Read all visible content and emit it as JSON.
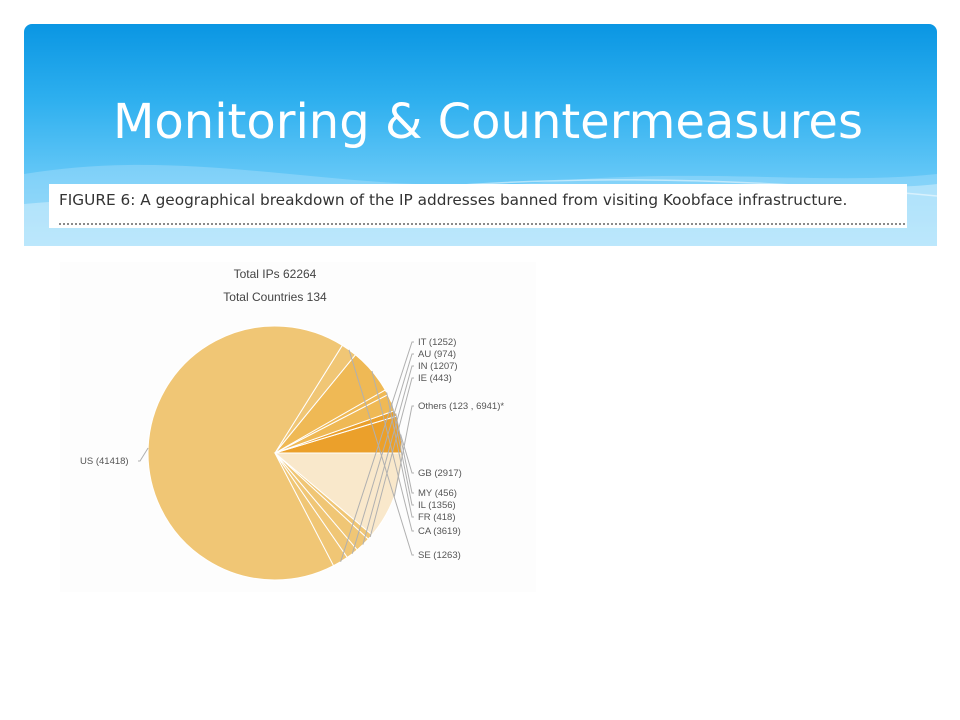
{
  "slide": {
    "title": "Monitoring & Countermeasures",
    "caption": "FIGURE 6: A geographical breakdown of the IP addresses banned from visiting Koobface infrastructure."
  },
  "colors": {
    "header_top": "#0a96e3",
    "header_bottom": "#8fd8fa",
    "slice_light": "#f0c675",
    "slice_pale": "#f9e8cb",
    "slice_dark": "#eba02b",
    "slice_mid": "#efb955"
  },
  "chart_data": {
    "type": "pie",
    "title": "Total IPs 62264",
    "subtitle": "Total Countries 134",
    "start_angle_deg": 0,
    "direction": "counterclockwise-from-3-oclock",
    "slices": [
      {
        "label": "GB (2917)",
        "name": "GB",
        "value": 2917
      },
      {
        "label": "MY (456)",
        "name": "MY",
        "value": 456
      },
      {
        "label": "IL (1356)",
        "name": "IL",
        "value": 1356
      },
      {
        "label": "FR (418)",
        "name": "FR",
        "value": 418
      },
      {
        "label": "CA (3619)",
        "name": "CA",
        "value": 3619
      },
      {
        "label": "SE (1263)",
        "name": "SE",
        "value": 1263
      },
      {
        "label": "US (41418)",
        "name": "US",
        "value": 41418
      },
      {
        "label": "IT (1252)",
        "name": "IT",
        "value": 1252
      },
      {
        "label": "AU (974)",
        "name": "AU",
        "value": 974
      },
      {
        "label": "IN (1207)",
        "name": "IN",
        "value": 1207
      },
      {
        "label": "IE (443)",
        "name": "IE",
        "value": 443
      },
      {
        "label": "Others (123 , 6941)*",
        "name": "Others",
        "value": 6941
      }
    ]
  }
}
